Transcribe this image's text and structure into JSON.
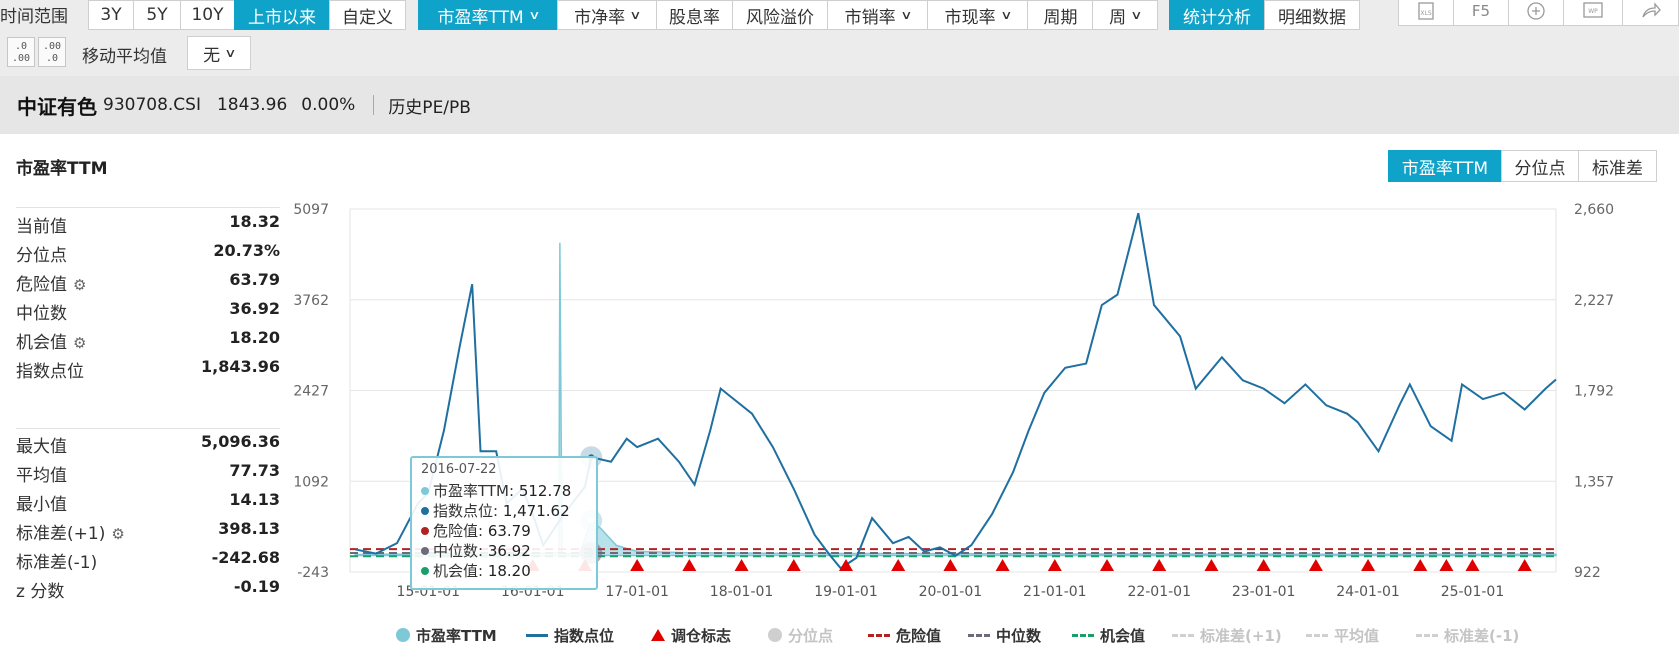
{
  "toolbar": {
    "time_range_label": "时间范围",
    "range_buttons": [
      "3Y",
      "5Y",
      "10Y",
      "上市以来",
      "自定义"
    ],
    "active_range": "上市以来",
    "metric_tabs": [
      {
        "label": "市盈率TTM",
        "dropdown": true,
        "active": true
      },
      {
        "label": "市净率",
        "dropdown": true
      },
      {
        "label": "股息率",
        "dropdown": false
      },
      {
        "label": "风险溢价",
        "dropdown": false
      },
      {
        "label": "市销率",
        "dropdown": true
      },
      {
        "label": "市现率",
        "dropdown": true
      }
    ],
    "period_label": "周期",
    "period_value": "周",
    "view_tabs": [
      "统计分析",
      "明细数据"
    ],
    "active_view": "统计分析",
    "f5_label": "F5",
    "decimal_icons": [
      ".0 .00",
      ".00 .0"
    ],
    "moving_avg_label": "移动平均值",
    "moving_avg_value": "无",
    "icons": [
      "xls-export-icon",
      "refresh-icon",
      "add-icon",
      "word-export-icon",
      "share-icon"
    ]
  },
  "info": {
    "name": "中证有色",
    "code": "930708.CSI",
    "value": "1843.96",
    "change": "0.00%",
    "history_link": "历史PE/PB"
  },
  "panel": {
    "title": "市盈率TTM",
    "mode_tabs": [
      "市盈率TTM",
      "分位点",
      "标准差"
    ],
    "active_mode": "市盈率TTM"
  },
  "stats": {
    "group1": [
      {
        "label": "当前值",
        "value": "18.32",
        "gear": false
      },
      {
        "label": "分位点",
        "value": "20.73%",
        "gear": false
      },
      {
        "label": "危险值",
        "value": "63.79",
        "gear": true
      },
      {
        "label": "中位数",
        "value": "36.92",
        "gear": false
      },
      {
        "label": "机会值",
        "value": "18.20",
        "gear": true
      },
      {
        "label": "指数点位",
        "value": "1,843.96",
        "gear": false
      }
    ],
    "group2": [
      {
        "label": "最大值",
        "value": "5,096.36",
        "gear": false
      },
      {
        "label": "平均值",
        "value": "77.73",
        "gear": false
      },
      {
        "label": "最小值",
        "value": "14.13",
        "gear": false
      },
      {
        "label": "标准差(+1)",
        "value": "398.13",
        "gear": true
      },
      {
        "label": "标准差(-1)",
        "value": "-242.68",
        "gear": false
      },
      {
        "label": "z 分数",
        "value": "-0.19",
        "gear": false
      }
    ]
  },
  "tooltip": {
    "date": "2016-07-22",
    "rows": [
      {
        "label": "市盈率TTM",
        "value": "512.78",
        "color": "#7ec9d8"
      },
      {
        "label": "指数点位",
        "value": "1,471.62",
        "color": "#1f6fa0"
      },
      {
        "label": "危险值",
        "value": "63.79",
        "color": "#b22222"
      },
      {
        "label": "中位数",
        "value": "36.92",
        "color": "#6b6b7a"
      },
      {
        "label": "机会值",
        "value": "18.20",
        "color": "#1a9e6a"
      }
    ]
  },
  "legend": [
    {
      "label": "市盈率TTM",
      "type": "circle",
      "color": "#7ec9d8",
      "dim": false
    },
    {
      "label": "指数点位",
      "type": "line",
      "color": "#1f6fa0",
      "dim": false
    },
    {
      "label": "调仓标志",
      "type": "triangle",
      "color": "#e00000",
      "dim": false
    },
    {
      "label": "分位点",
      "type": "circle",
      "color": "#cfcfcf",
      "dim": true
    },
    {
      "label": "危险值",
      "type": "dash",
      "color": "#b22222",
      "dim": false
    },
    {
      "label": "中位数",
      "type": "dash",
      "color": "#6b6b7a",
      "dim": false
    },
    {
      "label": "机会值",
      "type": "dash",
      "color": "#1a9e6a",
      "dim": false
    },
    {
      "label": "标准差(+1)",
      "type": "dash",
      "color": "#d0d0d0",
      "dim": true
    },
    {
      "label": "平均值",
      "type": "dash",
      "color": "#d0d0d0",
      "dim": true
    },
    {
      "label": "标准差(-1)",
      "type": "dash",
      "color": "#d0d0d0",
      "dim": true
    }
  ],
  "chart_data": {
    "type": "line",
    "left_axis": {
      "ticks": [
        "5097",
        "3762",
        "2427",
        "1092",
        "-243"
      ],
      "min": -243,
      "max": 5097
    },
    "right_axis": {
      "ticks": [
        "2,660",
        "2,227",
        "1,792",
        "1,357",
        "922"
      ],
      "min": 922,
      "max": 2660
    },
    "x_ticks": [
      "15-01-01",
      "16-01-01",
      "17-01-01",
      "18-01-01",
      "19-01-01",
      "20-01-01",
      "21-01-01",
      "22-01-01",
      "23-01-01",
      "24-01-01",
      "25-01-01"
    ],
    "x_range": [
      2014.25,
      2025.8
    ],
    "grid": true,
    "reference_lines": {
      "danger": 63.79,
      "median": 36.92,
      "opportunity": 18.2
    },
    "series": [
      {
        "name": "指数点位",
        "axis": "right",
        "color": "#1f6fa0",
        "points": [
          [
            2014.3,
            1030
          ],
          [
            2014.5,
            1010
          ],
          [
            2014.7,
            1060
          ],
          [
            2014.9,
            1250
          ],
          [
            2015.0,
            1300
          ],
          [
            2015.15,
            1600
          ],
          [
            2015.3,
            2000
          ],
          [
            2015.42,
            2300
          ],
          [
            2015.5,
            1500
          ],
          [
            2015.65,
            1500
          ],
          [
            2015.75,
            1250
          ],
          [
            2015.9,
            1320
          ],
          [
            2016.0,
            1200
          ],
          [
            2016.1,
            1050
          ],
          [
            2016.3,
            1200
          ],
          [
            2016.5,
            1330
          ],
          [
            2016.56,
            1471.62
          ],
          [
            2016.75,
            1450
          ],
          [
            2016.9,
            1560
          ],
          [
            2017.0,
            1520
          ],
          [
            2017.2,
            1560
          ],
          [
            2017.4,
            1450
          ],
          [
            2017.55,
            1340
          ],
          [
            2017.7,
            1600
          ],
          [
            2017.8,
            1800
          ],
          [
            2017.9,
            1760
          ],
          [
            2018.1,
            1680
          ],
          [
            2018.3,
            1520
          ],
          [
            2018.5,
            1320
          ],
          [
            2018.7,
            1100
          ],
          [
            2018.85,
            1000
          ],
          [
            2018.95,
            940
          ],
          [
            2019.1,
            990
          ],
          [
            2019.25,
            1180
          ],
          [
            2019.45,
            1060
          ],
          [
            2019.6,
            1090
          ],
          [
            2019.75,
            1020
          ],
          [
            2019.9,
            1040
          ],
          [
            2020.05,
            1000
          ],
          [
            2020.2,
            1050
          ],
          [
            2020.4,
            1200
          ],
          [
            2020.6,
            1400
          ],
          [
            2020.75,
            1600
          ],
          [
            2020.9,
            1780
          ],
          [
            2021.1,
            1900
          ],
          [
            2021.3,
            1920
          ],
          [
            2021.45,
            2200
          ],
          [
            2021.6,
            2250
          ],
          [
            2021.8,
            2640
          ],
          [
            2021.95,
            2200
          ],
          [
            2022.2,
            2050
          ],
          [
            2022.35,
            1800
          ],
          [
            2022.6,
            1950
          ],
          [
            2022.8,
            1840
          ],
          [
            2023.0,
            1800
          ],
          [
            2023.2,
            1730
          ],
          [
            2023.4,
            1820
          ],
          [
            2023.6,
            1720
          ],
          [
            2023.8,
            1680
          ],
          [
            2023.9,
            1640
          ],
          [
            2024.1,
            1500
          ],
          [
            2024.3,
            1720
          ],
          [
            2024.4,
            1820
          ],
          [
            2024.6,
            1620
          ],
          [
            2024.8,
            1550
          ],
          [
            2024.9,
            1820
          ],
          [
            2025.1,
            1750
          ],
          [
            2025.3,
            1780
          ],
          [
            2025.5,
            1700
          ],
          [
            2025.7,
            1800
          ],
          [
            2025.8,
            1843.96
          ]
        ]
      },
      {
        "name": "市盈率TTM",
        "axis": "left",
        "color": "#7ec9d8",
        "points": [
          [
            2014.3,
            15
          ],
          [
            2014.8,
            20
          ],
          [
            2015.5,
            25
          ],
          [
            2016.0,
            30
          ],
          [
            2016.25,
            40
          ],
          [
            2016.26,
            4600
          ],
          [
            2016.28,
            30
          ],
          [
            2016.45,
            30
          ],
          [
            2016.56,
            512.78
          ],
          [
            2016.65,
            400
          ],
          [
            2016.8,
            150
          ],
          [
            2017.0,
            60
          ],
          [
            2017.5,
            40
          ],
          [
            2018.5,
            30
          ],
          [
            2019.5,
            30
          ],
          [
            2020.5,
            25
          ],
          [
            2021.5,
            22
          ],
          [
            2022.5,
            20
          ],
          [
            2023.5,
            19
          ],
          [
            2024.5,
            18
          ],
          [
            2025.8,
            18.32
          ]
        ]
      }
    ],
    "rebalance_markers": [
      2016.0,
      2016.5,
      2017.0,
      2017.5,
      2018.0,
      2018.5,
      2019.0,
      2019.5,
      2020.0,
      2020.5,
      2021.0,
      2021.5,
      2022.0,
      2022.5,
      2023.0,
      2023.5,
      2024.0,
      2024.5,
      2024.75,
      2025.0,
      2025.5
    ]
  }
}
